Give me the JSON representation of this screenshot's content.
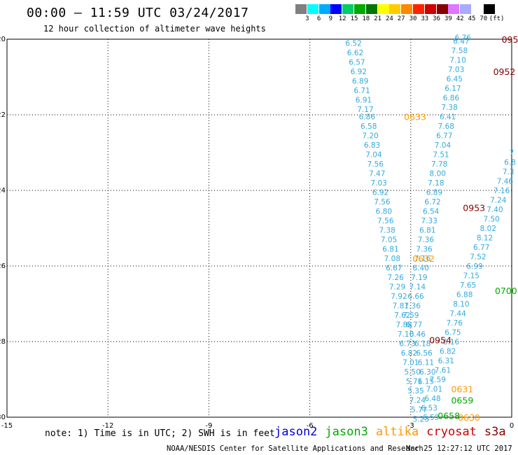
{
  "title": "00:00 — 11:59 UTC 03/24/2017",
  "subtitle": "12 hour collection of altimeter wave heights",
  "colorbar": {
    "colors": [
      "#808080",
      "#00ffff",
      "#00aaff",
      "#0000ff",
      "#00cc66",
      "#00aa00",
      "#007700",
      "#ffff00",
      "#ffcc00",
      "#ff8800",
      "#ff2200",
      "#cc0000",
      "#880000",
      "#dd77ff",
      "#aaaaff",
      "#ffffff",
      "#000000"
    ],
    "labels": [
      "3",
      "6",
      "9",
      "12",
      "15",
      "18",
      "21",
      "24",
      "27",
      "30",
      "33",
      "36",
      "39",
      "42",
      "45",
      "70"
    ],
    "unit": "(ft)"
  },
  "note": "note: 1) Time is in UTC; 2) SWH is in feet",
  "legend": [
    {
      "name": "jason2",
      "color": "#0000dd"
    },
    {
      "name": "jason3",
      "color": "#00aa00"
    },
    {
      "name": "altika",
      "color": "#ff9900"
    },
    {
      "name": "cryosat",
      "color": "#cc0000"
    },
    {
      "name": "s3a",
      "color": "#880000"
    }
  ],
  "footer_left": "NOAA/NESDIS Center for Satellite Applications and Research",
  "footer_right": "Mar 25 12:27:12 UTC 2017",
  "chart_data": {
    "type": "scatter",
    "xlim": [
      -15,
      0
    ],
    "ylim": [
      -30,
      -20
    ],
    "xticks": [
      -15,
      -12,
      -9,
      -6,
      -3,
      0
    ],
    "xtick_labels": [
      "-15",
      "-12",
      "-9",
      "-6",
      "-3",
      "0"
    ],
    "yticks": [
      -20,
      -22,
      -24,
      -26,
      -28,
      -30
    ],
    "ytick_labels": [
      "-20",
      "-22",
      "-24",
      "-26",
      "-28",
      "-30"
    ],
    "grid": true,
    "series": [
      {
        "name": "altika",
        "color": "#33aadd",
        "points": [
          [
            -4.7,
            -20.1,
            "6.52"
          ],
          [
            -4.65,
            -20.35,
            "6.62"
          ],
          [
            -4.6,
            -20.6,
            "6.57"
          ],
          [
            -4.55,
            -20.85,
            "6.92"
          ],
          [
            -4.5,
            -21.1,
            "6.89"
          ],
          [
            -4.45,
            -21.35,
            "6.71"
          ],
          [
            -4.4,
            -21.6,
            "6.91"
          ],
          [
            -4.35,
            -21.85,
            "7.17"
          ],
          [
            -4.3,
            -22.05,
            "6.86"
          ],
          [
            -4.25,
            -22.3,
            "6.58"
          ],
          [
            -4.2,
            -22.55,
            "7.20"
          ],
          [
            -4.15,
            -22.8,
            "6.83"
          ],
          [
            -4.1,
            -23.05,
            "7.04"
          ],
          [
            -4.05,
            -23.3,
            "7.56"
          ],
          [
            -4.0,
            -23.55,
            "7.47"
          ],
          [
            -3.95,
            -23.8,
            "7.03"
          ],
          [
            -3.9,
            -24.05,
            "6.92"
          ],
          [
            -3.85,
            -24.3,
            "7.56"
          ],
          [
            -3.8,
            -24.55,
            "6.80"
          ],
          [
            -3.75,
            -24.8,
            "7.56"
          ],
          [
            -3.7,
            -25.05,
            "7.38"
          ],
          [
            -3.65,
            -25.3,
            "7.05"
          ],
          [
            -3.6,
            -25.55,
            "6.81"
          ],
          [
            -3.55,
            -25.8,
            "7.08"
          ],
          [
            -3.5,
            -26.05,
            "6.67"
          ],
          [
            -3.45,
            -26.3,
            "7.26"
          ],
          [
            -3.4,
            -26.55,
            "7.29"
          ],
          [
            -3.35,
            -26.8,
            "7.92"
          ],
          [
            -3.3,
            -27.05,
            "7.81"
          ],
          [
            -3.25,
            -27.3,
            "7.62"
          ],
          [
            -3.2,
            -27.55,
            "7.88"
          ],
          [
            -3.15,
            -27.8,
            "7.10"
          ],
          [
            -3.1,
            -28.05,
            "6.73"
          ],
          [
            -3.05,
            -28.3,
            "6.82"
          ],
          [
            -3.0,
            -28.55,
            "7.01"
          ],
          [
            -2.95,
            -28.8,
            "5.50"
          ],
          [
            -2.9,
            -29.05,
            "5.71"
          ],
          [
            -2.85,
            -29.3,
            "5.35"
          ],
          [
            -2.8,
            -29.55,
            "7.24"
          ],
          [
            -2.75,
            -29.8,
            "5.77"
          ],
          [
            -2.7,
            -30.05,
            "5.23"
          ]
        ]
      },
      {
        "name": "altika",
        "color": "#33aadd",
        "points": [
          [
            -2.55,
            -29.05,
            "6.15"
          ],
          [
            -2.5,
            -28.8,
            "6.30"
          ],
          [
            -2.55,
            -28.55,
            "6.11"
          ],
          [
            -2.6,
            -28.3,
            "6.56"
          ],
          [
            -2.65,
            -28.05,
            "6.18"
          ],
          [
            -2.8,
            -27.8,
            "6.46"
          ],
          [
            -2.9,
            -27.55,
            "6.77"
          ],
          [
            -3.0,
            -27.3,
            "7.59"
          ],
          [
            -2.95,
            -27.05,
            "7.36"
          ],
          [
            -2.85,
            -26.8,
            "6.66"
          ],
          [
            -2.8,
            -26.55,
            "7.14"
          ],
          [
            -2.75,
            -26.3,
            "7.19"
          ],
          [
            -2.7,
            -26.05,
            "6.40"
          ],
          [
            -2.65,
            -25.8,
            "7.16"
          ],
          [
            -2.6,
            -25.55,
            "7.36"
          ],
          [
            -2.55,
            -25.3,
            "7.36"
          ],
          [
            -2.5,
            -25.05,
            "6.81"
          ],
          [
            -2.45,
            -24.8,
            "7.33"
          ],
          [
            -2.4,
            -24.55,
            "6.54"
          ],
          [
            -2.35,
            -24.3,
            "6.72"
          ],
          [
            -2.3,
            -24.05,
            "6.89"
          ],
          [
            -2.25,
            -23.8,
            "7.18"
          ],
          [
            -2.2,
            -23.55,
            "8.00"
          ],
          [
            -2.15,
            -23.3,
            "7.78"
          ],
          [
            -2.1,
            -23.05,
            "7.51"
          ],
          [
            -2.05,
            -22.8,
            "7.04"
          ],
          [
            -2.0,
            -22.55,
            "6.77"
          ],
          [
            -1.95,
            -22.3,
            "7.68"
          ],
          [
            -1.9,
            -22.05,
            "6.41"
          ],
          [
            -1.85,
            -21.8,
            "7.38"
          ],
          [
            -1.8,
            -21.55,
            "6.86"
          ],
          [
            -1.75,
            -21.3,
            "6.17"
          ],
          [
            -1.7,
            -21.05,
            "6.45"
          ],
          [
            -1.65,
            -20.8,
            "7.03"
          ],
          [
            -1.6,
            -20.55,
            "7.10"
          ],
          [
            -1.55,
            -20.3,
            "7.58"
          ],
          [
            -1.5,
            -20.05,
            "6.47"
          ],
          [
            -1.45,
            -19.95,
            "6.76"
          ]
        ]
      },
      {
        "name": "altika",
        "color": "#33aadd",
        "points": [
          [
            -2.4,
            -30.0,
            "6.59"
          ],
          [
            -2.45,
            -29.75,
            "6.53"
          ],
          [
            -2.35,
            -29.5,
            "6.48"
          ],
          [
            -2.3,
            -29.25,
            "7.01"
          ],
          [
            -2.2,
            -29.0,
            "7.59"
          ],
          [
            -2.05,
            -28.75,
            "7.61"
          ],
          [
            -1.95,
            -28.5,
            "6.31"
          ],
          [
            -1.9,
            -28.25,
            "6.82"
          ],
          [
            -1.8,
            -28.0,
            "6.16"
          ],
          [
            -1.75,
            -27.75,
            "6.75"
          ],
          [
            -1.7,
            -27.5,
            "7.76"
          ],
          [
            -1.6,
            -27.25,
            "7.44"
          ],
          [
            -1.5,
            -27.0,
            "8.10"
          ],
          [
            -1.4,
            -26.75,
            "6.88"
          ],
          [
            -1.3,
            -26.5,
            "7.65"
          ],
          [
            -1.2,
            -26.25,
            "7.15"
          ],
          [
            -1.1,
            -26.0,
            "6.99"
          ],
          [
            -1.0,
            -25.75,
            "7.52"
          ],
          [
            -0.9,
            -25.5,
            "6.77"
          ],
          [
            -0.8,
            -25.25,
            "8.12"
          ],
          [
            -0.7,
            -25.0,
            "8.02"
          ],
          [
            -0.6,
            -24.75,
            "7.50"
          ],
          [
            -0.5,
            -24.5,
            "7.40"
          ],
          [
            -0.4,
            -24.25,
            "7.24"
          ],
          [
            -0.3,
            -24.0,
            "7.16"
          ],
          [
            -0.2,
            -23.75,
            "7.46"
          ],
          [
            -0.1,
            -23.5,
            "7.3"
          ],
          [
            -0.05,
            -23.25,
            "6.8"
          ],
          [
            0.0,
            -23.0,
            "7"
          ]
        ]
      }
    ],
    "annotations": [
      {
        "text": "0633",
        "x": -3.2,
        "y": -22.05,
        "satellite": "altika"
      },
      {
        "text": "0632",
        "x": -2.95,
        "y": -25.8,
        "satellite": "altika"
      },
      {
        "text": "0631",
        "x": -1.8,
        "y": -29.25,
        "satellite": "altika"
      },
      {
        "text": "0630",
        "x": -1.6,
        "y": -30.0,
        "satellite": "altika"
      },
      {
        "text": "0659",
        "x": -1.8,
        "y": -29.55,
        "satellite": "jason3"
      },
      {
        "text": "0658",
        "x": -2.2,
        "y": -29.95,
        "satellite": "jason3"
      },
      {
        "text": "0700",
        "x": -0.5,
        "y": -26.65,
        "satellite": "jason3"
      },
      {
        "text": "0954",
        "x": -2.45,
        "y": -27.95,
        "satellite": "s3a"
      },
      {
        "text": "0953",
        "x": -1.45,
        "y": -24.45,
        "satellite": "s3a"
      },
      {
        "text": "0952",
        "x": -0.55,
        "y": -20.85,
        "satellite": "s3a"
      },
      {
        "text": "095",
        "x": -0.3,
        "y": -20.0,
        "satellite": "s3a"
      }
    ]
  }
}
